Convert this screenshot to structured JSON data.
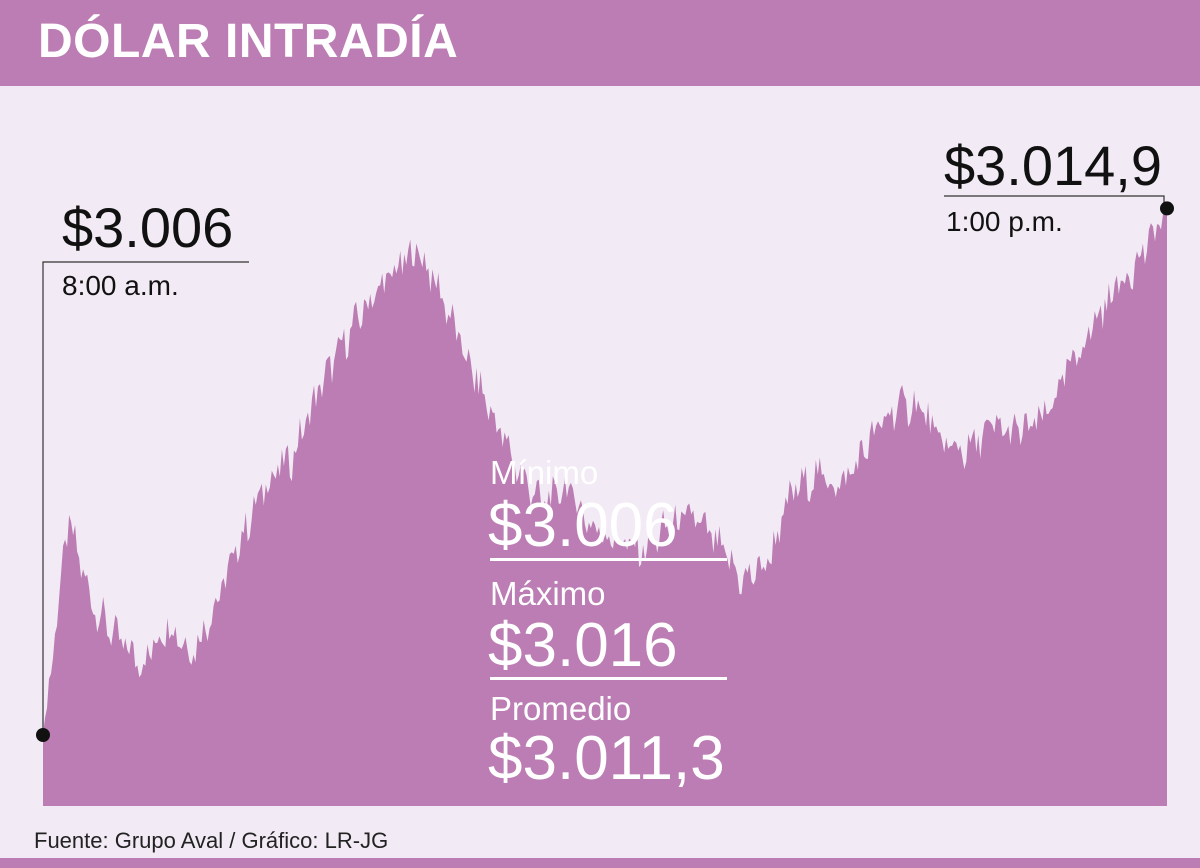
{
  "header": {
    "title": "DÓLAR INTRADÍA"
  },
  "chart_data": {
    "type": "area",
    "x_start": "8:00 a.m.",
    "x_end": "1:00 p.m.",
    "start": {
      "value_label": "$3.006",
      "time_label": "8:00 a.m.",
      "value": 3006
    },
    "end": {
      "value_label": "$3.014,9",
      "time_label": "1:00 p.m.",
      "value": 3014.9
    },
    "ylim": [
      3004.8,
      3016.8
    ],
    "profile": [
      3006,
      3009.6,
      3008.2,
      3007.6,
      3007.2,
      3007.9,
      3007.4,
      3008.3,
      3009.4,
      3010.3,
      3010.7,
      3011.8,
      3012.6,
      3013.3,
      3013.8,
      3014.2,
      3013.4,
      3012.3,
      3011.4,
      3010.5,
      3009.9,
      3010.2,
      3009.5,
      3009.3,
      3009.1,
      3009.5,
      3009.7,
      3009.2,
      3008.6,
      3008.9,
      3010.1,
      3010.4,
      3010.2,
      3010.9,
      3011.5,
      3011.6,
      3010.9,
      3010.8,
      3011.2,
      3011.1,
      3011.3,
      3012.1,
      3012.9,
      3013.6,
      3014.1,
      3014.9
    ],
    "color": "#bb7db3",
    "stats": [
      {
        "label": "Mínimo",
        "value": "$3.006"
      },
      {
        "label": "Máximo",
        "value": "$3.016"
      },
      {
        "label": "Promedio",
        "value": "$3.011,3"
      }
    ]
  },
  "source": "Fuente: Grupo Aval / Gráfico: LR-JG"
}
